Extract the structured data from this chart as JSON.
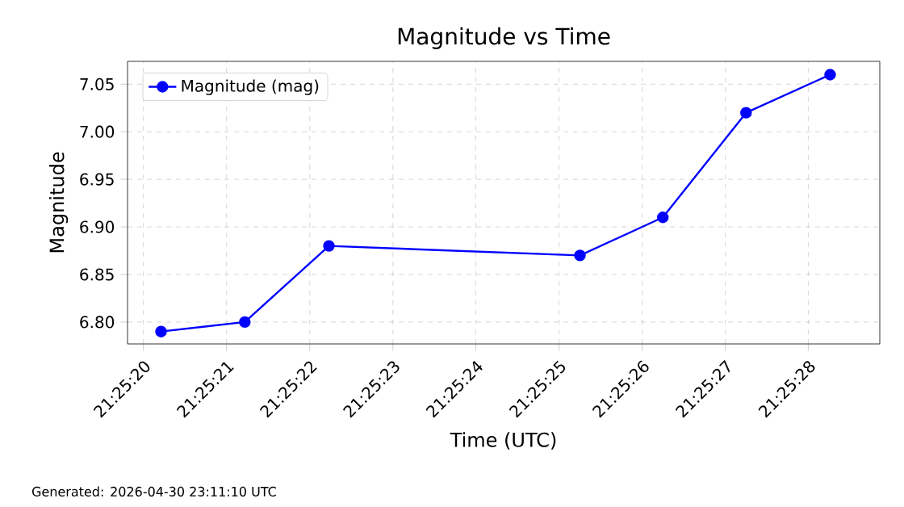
{
  "chart_data": {
    "type": "line",
    "title": "Magnitude vs Time",
    "xlabel": "Time (UTC)",
    "ylabel": "Magnitude",
    "x": [
      21.422281,
      21.422561,
      21.422842,
      21.423681,
      21.423958,
      21.424236,
      21.424517
    ],
    "series": [
      {
        "name": "Magnitude (mag)",
        "color": "#0000ff",
        "values": [
          6.79,
          6.8,
          6.88,
          6.87,
          6.91,
          7.02,
          7.06
        ]
      }
    ],
    "xlim": [
      21.422169,
      21.424683
    ],
    "xticks": [
      {
        "value": 21.422222,
        "label": "21:25:20"
      },
      {
        "value": 21.4225,
        "label": "21:25:21"
      },
      {
        "value": 21.422778,
        "label": "21:25:22"
      },
      {
        "value": 21.423056,
        "label": "21:25:23"
      },
      {
        "value": 21.423333,
        "label": "21:25:24"
      },
      {
        "value": 21.423611,
        "label": "21:25:25"
      },
      {
        "value": 21.423889,
        "label": "21:25:26"
      },
      {
        "value": 21.424167,
        "label": "21:25:27"
      },
      {
        "value": 21.424444,
        "label": "21:25:28"
      }
    ],
    "ylim": [
      6.777,
      7.074
    ],
    "yticks": [
      {
        "value": 6.8,
        "label": "6.80"
      },
      {
        "value": 6.85,
        "label": "6.85"
      },
      {
        "value": 6.9,
        "label": "6.90"
      },
      {
        "value": 6.95,
        "label": "6.95"
      },
      {
        "value": 7.0,
        "label": "7.00"
      },
      {
        "value": 7.05,
        "label": "7.05"
      }
    ],
    "grid": true,
    "legend": "top left",
    "marker": "circle",
    "line_style": "solid",
    "annotations": [
      "Generated: 2026-04-30 23:11:10 UTC"
    ]
  }
}
